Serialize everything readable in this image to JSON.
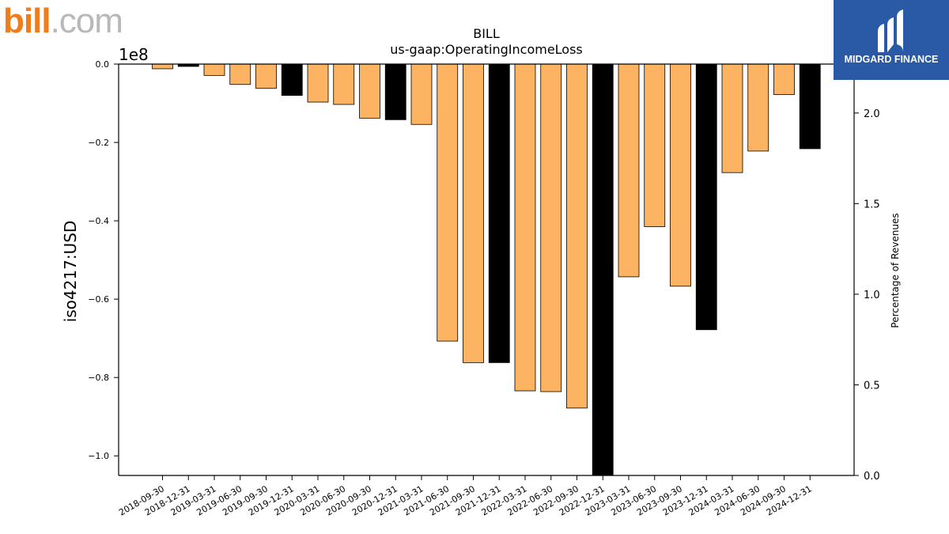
{
  "logos": {
    "left_primary": "bill",
    "left_secondary": ".com",
    "right_name": "MIDGARD FINANCE"
  },
  "colors": {
    "default_bar": "#fdb462",
    "highlight_bar": "#000000",
    "bar_edge": "#000000"
  },
  "chart_data": {
    "type": "bar",
    "title": "BILL",
    "subtitle": "us-gaap:OperatingIncomeLoss",
    "ylabel": "iso4217:USD",
    "ylabel_right": "Percentage of Revenues",
    "y_offset_label": "1e8",
    "ylim": [
      -1.05,
      0.0
    ],
    "ylim_right": [
      0.0,
      2.27
    ],
    "yticks": [
      0.0,
      -0.2,
      -0.4,
      -0.6,
      -0.8,
      -1.0
    ],
    "ytick_labels": [
      "0.0",
      "−0.2",
      "−0.4",
      "−0.6",
      "−0.8",
      "−1.0"
    ],
    "yticks_right": [
      0.0,
      0.5,
      1.0,
      1.5,
      2.0
    ],
    "ytick_labels_right": [
      "0.0",
      "0.5",
      "1.0",
      "1.5",
      "2.0"
    ],
    "grid": false,
    "categories": [
      "2018-09-30",
      "2018-12-31",
      "2019-03-31",
      "2019-06-30",
      "2019-09-30",
      "2019-12-31",
      "2020-03-31",
      "2020-06-30",
      "2020-09-30",
      "2020-12-31",
      "2021-03-31",
      "2021-06-30",
      "2021-09-30",
      "2021-12-31",
      "2022-03-31",
      "2022-06-30",
      "2022-09-30",
      "2022-12-31",
      "2023-03-31",
      "2023-06-30",
      "2023-09-30",
      "2023-12-31",
      "2024-03-31",
      "2024-06-30",
      "2024-09-30",
      "2024-12-31"
    ],
    "values": [
      -0.012,
      -0.006,
      -0.029,
      -0.052,
      -0.062,
      -0.08,
      -0.097,
      -0.103,
      -0.138,
      -0.142,
      -0.154,
      -0.707,
      -0.762,
      -0.762,
      -0.834,
      -0.836,
      -0.878,
      -1.06,
      -0.543,
      -0.415,
      -0.567,
      -0.678,
      -0.277,
      -0.222,
      -0.078,
      -0.216
    ],
    "highlight": [
      false,
      true,
      false,
      false,
      false,
      true,
      false,
      false,
      false,
      true,
      false,
      false,
      false,
      true,
      false,
      false,
      false,
      true,
      false,
      false,
      false,
      true,
      false,
      false,
      false,
      true
    ]
  }
}
